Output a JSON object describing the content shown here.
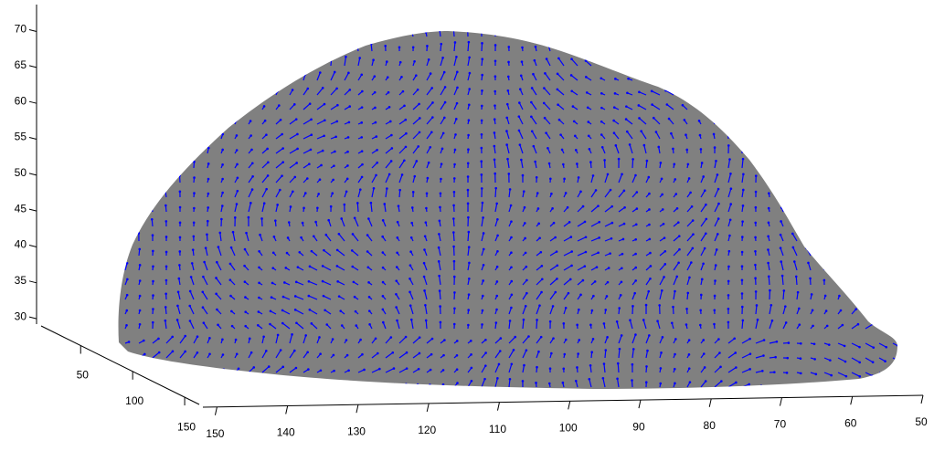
{
  "chart_data": {
    "type": "surface",
    "xlim": [
      152,
      50
    ],
    "xticks": [
      150,
      140,
      130,
      120,
      110,
      100,
      90,
      80,
      70,
      60,
      50
    ],
    "ylim": [
      12,
      164
    ],
    "yticks": [
      50,
      100,
      150
    ],
    "zlim": [
      29,
      73.5
    ],
    "zticks": [
      30,
      35,
      40,
      45,
      50,
      55,
      60,
      65,
      70
    ],
    "surface_color": "#808080",
    "arrow_color": "#0000ff"
  }
}
